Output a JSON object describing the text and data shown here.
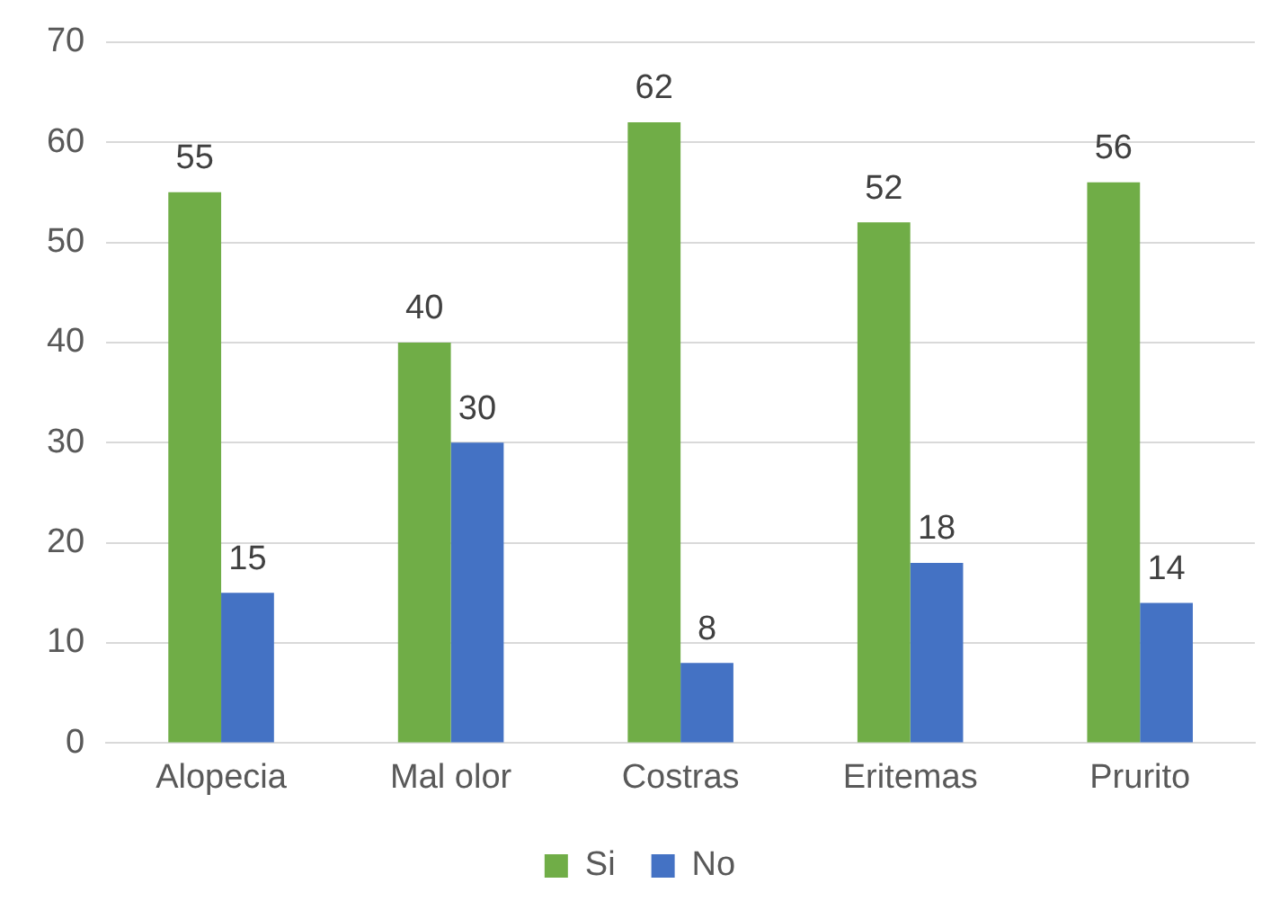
{
  "chart_data": {
    "type": "bar",
    "categories": [
      "Alopecia",
      "Mal olor",
      "Costras",
      "Eritemas",
      "Prurito"
    ],
    "series": [
      {
        "name": "Si",
        "color": "#70ad47",
        "values": [
          55,
          40,
          62,
          52,
          56
        ]
      },
      {
        "name": "No",
        "color": "#4472c4",
        "values": [
          15,
          30,
          8,
          18,
          14
        ]
      }
    ],
    "ylim": [
      0,
      70
    ],
    "yticks": [
      0,
      10,
      20,
      30,
      40,
      50,
      60,
      70
    ],
    "grid": "y",
    "legend": "bottom",
    "data_labels": true
  }
}
